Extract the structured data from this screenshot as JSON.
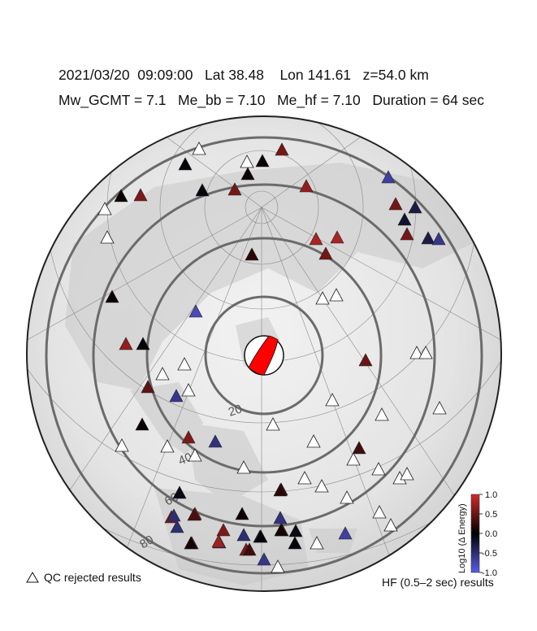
{
  "header": {
    "line1": "2021/03/20  09:09:00   Lat 38.48    Lon 141.61   z=54.0 km",
    "line2": "Mw_GCMT = 7.1   Me_bb = 7.10   Me_hf = 7.10   Duration = 64 sec"
  },
  "distance_rings": [
    {
      "label": "20",
      "degrees": 20
    },
    {
      "label": "40",
      "degrees": 40
    },
    {
      "label": "60",
      "degrees": 60
    },
    {
      "label": "80",
      "degrees": 80
    }
  ],
  "epicenter": {
    "lat": 38.48,
    "lon": 141.61,
    "mechanism_fill": "#ff0000"
  },
  "colorbar": {
    "title": "Log10 (Δ Energy)",
    "ticks": [
      "1.0",
      "0.5",
      "0.0",
      "-0.5",
      "-1.0"
    ],
    "range": [
      -1.0,
      1.0
    ],
    "colors": {
      "high": "#d42a2a",
      "mid": "#000000",
      "low": "#5b5be6"
    }
  },
  "legend": {
    "qc_label": "QC rejected results"
  },
  "footer": {
    "hf_label": "HF (0.5–2 sec) results"
  },
  "stations": [
    {
      "v": 0.55
    },
    {
      "v": 0.05
    },
    {
      "v": 0.6
    },
    {
      "v": -0.05
    },
    {
      "v": 0.55
    },
    {
      "v": 0.05
    },
    {
      "v": -0.05
    },
    {
      "v": 0.05
    },
    {
      "v": 0.7
    },
    {
      "v": 0.55
    },
    {
      "v": -0.7
    },
    {
      "v": 0.55
    },
    {
      "v": -0.3
    },
    {
      "v": -0.2
    },
    {
      "v": 0.8
    },
    {
      "v": 0.8
    },
    {
      "v": 0.55
    },
    {
      "v": 0.2
    },
    {
      "v": -0.3
    },
    {
      "v": -0.6
    },
    {
      "v": -0.8
    },
    {
      "v": 0.05
    },
    {
      "v": 0.7
    },
    {
      "v": -0.05
    },
    {
      "v": 0.5
    },
    {
      "v": -0.6
    },
    {
      "v": 0.45
    },
    {
      "v": 0.05
    },
    {
      "v": 0.6
    },
    {
      "v": -0.55
    },
    {
      "v": -0.1
    },
    {
      "v": 0.05
    },
    {
      "v": 0.25
    },
    {
      "v": 0.7
    },
    {
      "v": 0.6
    },
    {
      "v": -0.5
    },
    {
      "v": 0.6
    },
    {
      "v": 0.5
    },
    {
      "v": -0.4
    },
    {
      "v": -0.5
    },
    {
      "v": -0.55
    },
    {
      "v": 0.4
    },
    {
      "v": 0.6
    },
    {
      "v": 0.1
    },
    {
      "v": 0.0
    },
    {
      "v": -0.05
    },
    {
      "v": -0.1
    },
    {
      "v": 0.2
    },
    {
      "v": 0.75
    },
    {
      "v": 0.3
    },
    {
      "v": -0.6
    },
    {
      "v": 0.35
    },
    {
      "v": -0.5
    },
    {
      "v": 0.3
    },
    {
      "v": -0.05
    },
    {
      "v": 0.1
    },
    {
      "v": -0.7
    }
  ],
  "qc_count": 31
}
